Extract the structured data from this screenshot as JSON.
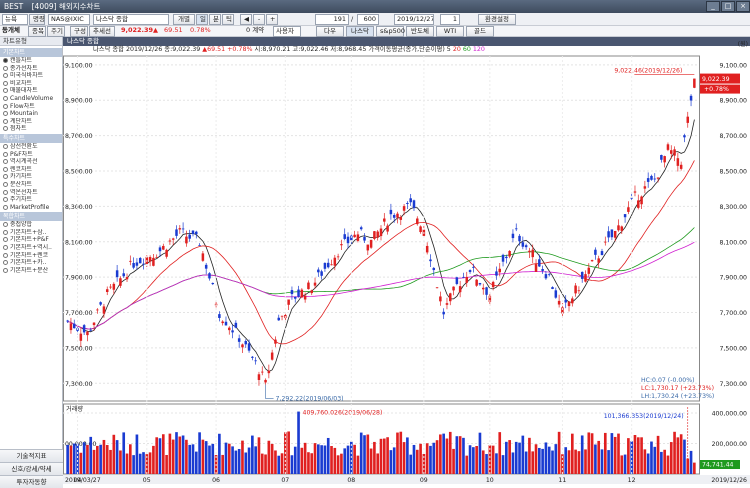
{
  "window": {
    "logo": "BEST",
    "title": "[4009] 해외지수차트"
  },
  "toolbar1": {
    "market": "뉴욕",
    "market_label": "명령",
    "symbol": "NAS@IXIC",
    "symbol_name": "나스닥 종합",
    "period_buttons": [
      "개별",
      "일",
      "분",
      "틱"
    ],
    "count": "191",
    "total": "600",
    "date": "2019/12/27",
    "interval": "1",
    "settings_label": "환경설정"
  },
  "toolbar2": {
    "side_label": "동개체",
    "buttons": [
      "종목",
      "주기",
      "구성",
      "추세선"
    ],
    "price": "9,022.39",
    "change": "69.51",
    "change_pct": "0.78%",
    "volume_label": "0 계약",
    "user_label": "사용자",
    "quick": [
      "다우",
      "나스닥",
      "s&p500",
      "반도체",
      "WTI",
      "골드"
    ]
  },
  "sidebar": {
    "header": "차트유형",
    "groups": [
      {
        "name": "기본차트",
        "items": [
          "캔들차트",
          "종가선차트",
          "미국식바차트",
          "비교차트",
          "매물대차트",
          "CandleVolume",
          "Flow차트",
          "Mountain",
          "계단차트",
          "점차트"
        ]
      },
      {
        "name": "특수차트",
        "items": [
          "삼선전환도",
          "P&F차트",
          "역시계곡선",
          "렌코차트",
          "카기차트",
          "분산차트",
          "역온선차트",
          "주기차트",
          "MarketProfile"
        ]
      },
      {
        "name": "복합차트",
        "items": [
          "중첩양합",
          "기본차트+삼..",
          "기본차트+P&F",
          "기본차트+역시..",
          "기본차트+렌코",
          "기본차트+카..",
          "기본차트+분산"
        ]
      }
    ],
    "bottom_buttons": [
      "기술적지표",
      "신호/강세/약세",
      "투자자동향"
    ]
  },
  "chart": {
    "window_title": "나스닥 종합",
    "info_name": "나스닥 종합",
    "info_date": "2019/12/26",
    "info_close": "종:9,022.39",
    "info_change": "▲69.51 +0.78%",
    "info_ohl": "시:8,970.21 고:9,022.46 저:8,968.45",
    "ma_label": "가격이동평균(종가,단순이평)",
    "ma_periods": [
      "5",
      "20",
      "60",
      "120"
    ],
    "unit": "(원)",
    "price_ticks": [
      "9,100.00",
      "8,900.00",
      "8,700.00",
      "8,500.00",
      "8,300.00",
      "8,100.00",
      "7,900.00",
      "7,700.00",
      "7,500.00",
      "7,300.00"
    ],
    "current_price": "9,022.39",
    "current_pct": "+0.78%",
    "high_note": "9,022.46(2019/12/26)",
    "low_note": "7,292.22(2019/06/03)",
    "hc": "HC:0.07 (-0.00%)",
    "lc": "LC:1,730.17 (+23.73%)",
    "lh": "LH:1,730.24 (+23.73%)",
    "volume_title": "거래량",
    "volume_ticks": [
      "400,000.00",
      "200,000.00"
    ],
    "volume_left_tick": "00,000.00",
    "volume_high_note": "409,760.026(2019/06/28)",
    "volume_last_note": "101,366.353(2019/12/24)",
    "volume_current": "74,741.44",
    "date_start": "2019/03/27",
    "date_end": "2019/12/26",
    "month_ticks": [
      "04",
      "05",
      "06",
      "07",
      "08",
      "09",
      "10",
      "11",
      "12"
    ]
  },
  "chart_data": {
    "type": "candlestick",
    "title": "나스닥 종합",
    "x": [
      "2019/03/27",
      "2019/04",
      "2019/05",
      "2019/06/03",
      "2019/07",
      "2019/08",
      "2019/09",
      "2019/10",
      "2019/11",
      "2019/12/26"
    ],
    "close": [
      7650,
      8100,
      7900,
      7292,
      8150,
      8200,
      8000,
      7900,
      8450,
      9022
    ],
    "ylim": [
      7200,
      9150
    ],
    "series": [
      {
        "name": "5",
        "color": "#222222"
      },
      {
        "name": "20",
        "color": "#e02020"
      },
      {
        "name": "60",
        "color": "#1f9a1f"
      },
      {
        "name": "120",
        "color": "#d020d0"
      }
    ],
    "volume_ylim": [
      0,
      420000
    ]
  },
  "colors": {
    "up": "#e02020",
    "down": "#1a3bd1",
    "ma5": "#222222",
    "ma20": "#e02020",
    "ma60": "#1f9a1f",
    "ma120": "#d020d0"
  }
}
